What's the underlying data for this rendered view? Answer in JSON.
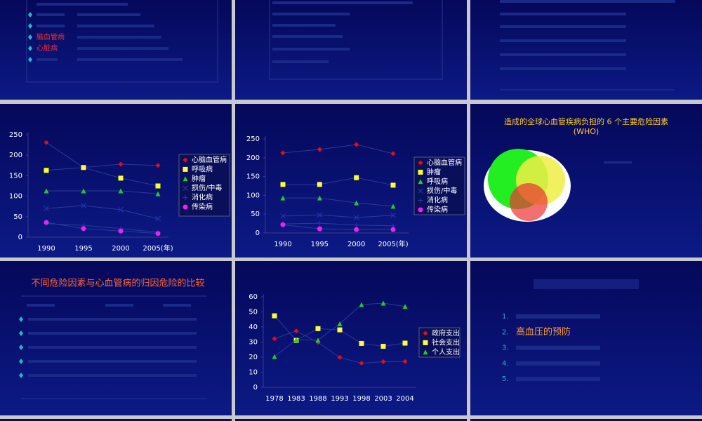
{
  "chart_data": [
    {
      "type": "line",
      "categories": [
        "1990",
        "1995",
        "2000",
        "2005(年)"
      ],
      "ylim": [
        0,
        250
      ],
      "yticks": [
        0,
        50,
        100,
        150,
        200,
        250
      ],
      "legend": "right",
      "line_color": "#2a3a9a",
      "series": [
        {
          "name": "心脑血管病",
          "color": "#dd1111",
          "marker": "diamond",
          "values": [
            231,
            170,
            178,
            175
          ]
        },
        {
          "name": "呼吸病",
          "color": "#ffff33",
          "marker": "square",
          "values": [
            163,
            170,
            144,
            125
          ]
        },
        {
          "name": "肿瘤",
          "color": "#22cc22",
          "marker": "triangle",
          "values": [
            113,
            113,
            113,
            106
          ]
        },
        {
          "name": "损伤/中毒",
          "color": "#2233aa",
          "marker": "x",
          "values": [
            70,
            77,
            67,
            45
          ]
        },
        {
          "name": "消化病",
          "color": "#2233aa",
          "marker": "plus",
          "values": [
            33,
            29,
            21,
            12
          ]
        },
        {
          "name": "传染病",
          "color": "#ee22ee",
          "marker": "circle",
          "values": [
            36,
            21,
            15,
            9
          ]
        }
      ]
    },
    {
      "type": "line",
      "categories": [
        "1990",
        "1995",
        "2000",
        "2005(年)"
      ],
      "ylim": [
        0,
        250
      ],
      "yticks": [
        0,
        50,
        100,
        150,
        200,
        250
      ],
      "legend": "right",
      "line_color": "#2a3a9a",
      "series": [
        {
          "name": "心脑血管病",
          "color": "#dd1111",
          "marker": "diamond",
          "values": [
            213,
            222,
            235,
            211
          ]
        },
        {
          "name": "肿瘤",
          "color": "#ffff33",
          "marker": "square",
          "values": [
            129,
            129,
            147,
            127
          ]
        },
        {
          "name": "呼吸病",
          "color": "#22cc22",
          "marker": "triangle",
          "values": [
            93,
            93,
            80,
            71
          ]
        },
        {
          "name": "损伤/中毒",
          "color": "#2233aa",
          "marker": "x",
          "values": [
            45,
            48,
            41,
            47
          ]
        },
        {
          "name": "消化病",
          "color": "#2233aa",
          "marker": "plus",
          "values": [
            24,
            26,
            21,
            19
          ]
        },
        {
          "name": "传染病",
          "color": "#ee22ee",
          "marker": "circle",
          "values": [
            22,
            11,
            9,
            9
          ]
        }
      ]
    },
    {
      "type": "line",
      "categories": [
        "1978",
        "1983",
        "1988",
        "1993",
        "1998",
        "2003",
        "2004"
      ],
      "ylim": [
        0,
        60
      ],
      "yticks": [
        0,
        10,
        20,
        30,
        40,
        50,
        60
      ],
      "legend": "right",
      "line_color": "#2a3a9a",
      "series": [
        {
          "name": "政府支出",
          "color": "#dd1111",
          "marker": "diamond",
          "values": [
            32.2,
            37.4,
            29.8,
            19.8,
            16.0,
            17.0,
            17.1
          ]
        },
        {
          "name": "社会支出",
          "color": "#ffff33",
          "marker": "square",
          "values": [
            47.4,
            31.1,
            38.9,
            38.1,
            29.1,
            27.2,
            29.3
          ]
        },
        {
          "name": "个人支出",
          "color": "#22cc22",
          "marker": "triangle",
          "values": [
            20.4,
            31.5,
            31.3,
            42.1,
            54.8,
            55.8,
            53.6
          ]
        }
      ]
    }
  ],
  "slides": {
    "first_items": [
      "脑血管病",
      "心脏病"
    ],
    "who_title_lines": [
      "造成的全球心血管疾病负担的 6 个主要危险因素",
      "(WHO)"
    ],
    "risk_title": "不同危险因素与心血管病的归因危险的比较",
    "outline_numbers": [
      "1.",
      "2.",
      "3.",
      "4.",
      "5."
    ],
    "outline_item": "高血压的预防"
  }
}
